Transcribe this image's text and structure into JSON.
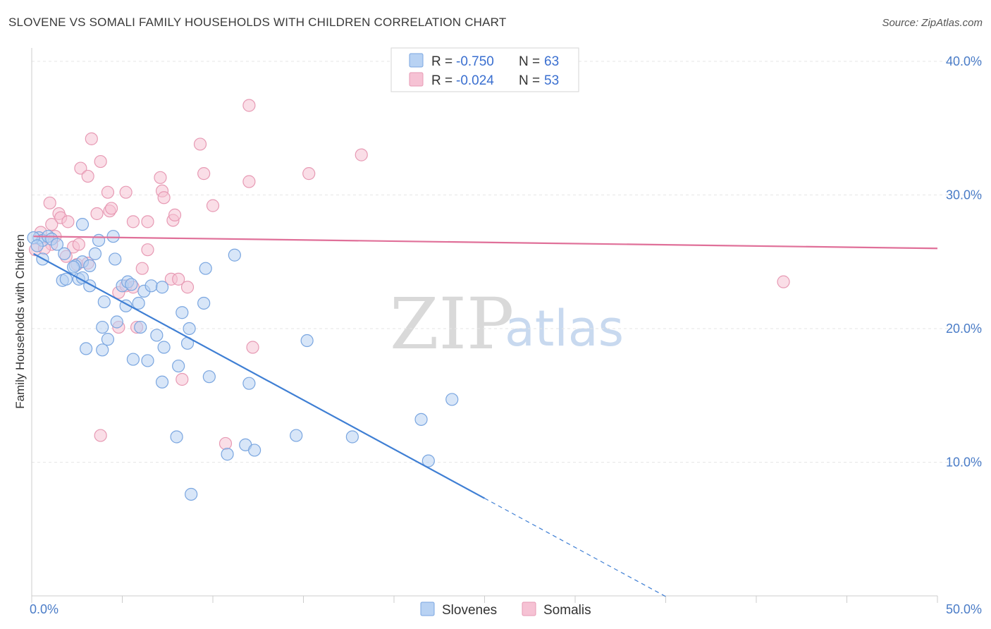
{
  "title": "SLOVENE VS SOMALI FAMILY HOUSEHOLDS WITH CHILDREN CORRELATION CHART",
  "source": "Source: ZipAtlas.com",
  "watermark": {
    "zip": "ZIP",
    "atlas": "atlas"
  },
  "colors": {
    "slovenes": "#3f7fd4",
    "slovenes_fill": "#b8d2f3",
    "somalis": "#e07099",
    "somalis_fill": "#f6c2d4"
  },
  "legend": {
    "r_label": "R =",
    "n_label": "N =",
    "rows": [
      {
        "r": "-0.750",
        "n": "63"
      },
      {
        "r": "-0.024",
        "n": "53"
      }
    ]
  },
  "chart_data": {
    "type": "scatter",
    "title": "SLOVENE VS SOMALI FAMILY HOUSEHOLDS WITH CHILDREN CORRELATION CHART",
    "xlabel": "",
    "ylabel": "Family Households with Children",
    "xlim": [
      0,
      50
    ],
    "ylim": [
      0,
      41
    ],
    "x_tick_labels": [
      "0.0%",
      "50.0%"
    ],
    "y_ticks": [
      10,
      20,
      30,
      40
    ],
    "y_tick_labels": [
      "10.0%",
      "20.0%",
      "30.0%",
      "40.0%"
    ],
    "grid": true,
    "legend_position": "top-center",
    "series": [
      {
        "name": "Slovenes",
        "color": "#3f7fd4",
        "trend": {
          "x0": 0.1,
          "y0": 25.6,
          "x1": 25.0,
          "y1": 7.3,
          "dash_to_x": 35.0
        },
        "points": [
          [
            0.4,
            26.8
          ],
          [
            0.6,
            26.6
          ],
          [
            0.9,
            26.9
          ],
          [
            1.1,
            26.7
          ],
          [
            0.6,
            25.2
          ],
          [
            1.8,
            25.6
          ],
          [
            2.8,
            25.0
          ],
          [
            1.7,
            23.6
          ],
          [
            1.9,
            23.7
          ],
          [
            2.4,
            24.7
          ],
          [
            2.6,
            23.7
          ],
          [
            2.8,
            23.8
          ],
          [
            3.2,
            24.7
          ],
          [
            3.5,
            25.6
          ],
          [
            3.7,
            26.6
          ],
          [
            2.8,
            27.8
          ],
          [
            4.5,
            26.9
          ],
          [
            4.6,
            25.2
          ],
          [
            3.2,
            23.2
          ],
          [
            5.0,
            23.2
          ],
          [
            5.3,
            23.5
          ],
          [
            5.5,
            23.3
          ],
          [
            6.2,
            22.8
          ],
          [
            6.6,
            23.2
          ],
          [
            7.2,
            23.1
          ],
          [
            4.0,
            22.0
          ],
          [
            5.2,
            21.7
          ],
          [
            5.9,
            21.9
          ],
          [
            4.7,
            20.5
          ],
          [
            3.9,
            20.1
          ],
          [
            6.0,
            20.1
          ],
          [
            8.3,
            21.2
          ],
          [
            9.5,
            21.9
          ],
          [
            9.6,
            24.5
          ],
          [
            11.2,
            25.5
          ],
          [
            4.2,
            19.2
          ],
          [
            6.9,
            19.5
          ],
          [
            7.3,
            18.6
          ],
          [
            8.6,
            18.9
          ],
          [
            3.0,
            18.5
          ],
          [
            3.9,
            18.4
          ],
          [
            8.7,
            20.0
          ],
          [
            5.6,
            17.7
          ],
          [
            6.4,
            17.6
          ],
          [
            8.1,
            17.2
          ],
          [
            7.2,
            16.0
          ],
          [
            9.8,
            16.4
          ],
          [
            12.0,
            15.9
          ],
          [
            15.2,
            19.1
          ],
          [
            21.5,
            13.2
          ],
          [
            23.2,
            14.7
          ],
          [
            8.0,
            11.9
          ],
          [
            11.8,
            11.3
          ],
          [
            12.3,
            10.9
          ],
          [
            14.6,
            12.0
          ],
          [
            17.7,
            11.9
          ],
          [
            10.8,
            10.6
          ],
          [
            21.9,
            10.1
          ],
          [
            8.8,
            7.6
          ],
          [
            0.1,
            26.8
          ],
          [
            0.3,
            26.2
          ],
          [
            1.4,
            26.3
          ],
          [
            2.3,
            24.6
          ]
        ]
      },
      {
        "name": "Somalis",
        "color": "#e07099",
        "trend": {
          "x0": 0.1,
          "y0": 26.9,
          "x1": 50.0,
          "y1": 26.0
        },
        "points": [
          [
            12.0,
            36.7
          ],
          [
            3.3,
            34.2
          ],
          [
            9.3,
            33.8
          ],
          [
            18.2,
            33.0
          ],
          [
            3.8,
            32.5
          ],
          [
            2.7,
            32.0
          ],
          [
            3.1,
            31.4
          ],
          [
            7.1,
            31.3
          ],
          [
            9.5,
            31.6
          ],
          [
            12.0,
            31.0
          ],
          [
            15.3,
            31.6
          ],
          [
            4.2,
            30.2
          ],
          [
            5.2,
            30.2
          ],
          [
            7.2,
            30.3
          ],
          [
            7.3,
            29.8
          ],
          [
            1.0,
            29.4
          ],
          [
            10.0,
            29.2
          ],
          [
            4.3,
            28.8
          ],
          [
            4.4,
            29.0
          ],
          [
            3.6,
            28.6
          ],
          [
            1.5,
            28.6
          ],
          [
            1.6,
            28.3
          ],
          [
            2.0,
            28.0
          ],
          [
            1.1,
            27.8
          ],
          [
            5.6,
            28.0
          ],
          [
            7.8,
            28.1
          ],
          [
            7.9,
            28.5
          ],
          [
            6.4,
            28.0
          ],
          [
            0.5,
            27.2
          ],
          [
            1.3,
            26.9
          ],
          [
            1.1,
            26.3
          ],
          [
            2.3,
            26.1
          ],
          [
            6.4,
            25.9
          ],
          [
            1.9,
            25.4
          ],
          [
            2.5,
            24.8
          ],
          [
            3.1,
            24.9
          ],
          [
            6.1,
            24.5
          ],
          [
            7.7,
            23.7
          ],
          [
            8.1,
            23.7
          ],
          [
            8.6,
            23.1
          ],
          [
            4.8,
            22.7
          ],
          [
            5.2,
            23.2
          ],
          [
            5.6,
            23.1
          ],
          [
            5.8,
            20.1
          ],
          [
            4.8,
            20.1
          ],
          [
            12.2,
            18.6
          ],
          [
            8.3,
            16.2
          ],
          [
            3.8,
            12.0
          ],
          [
            10.7,
            11.4
          ],
          [
            0.2,
            25.9
          ],
          [
            0.7,
            26.0
          ],
          [
            2.6,
            26.3
          ],
          [
            41.5,
            23.5
          ]
        ]
      }
    ]
  },
  "bottom_legend": [
    "Slovenes",
    "Somalis"
  ]
}
